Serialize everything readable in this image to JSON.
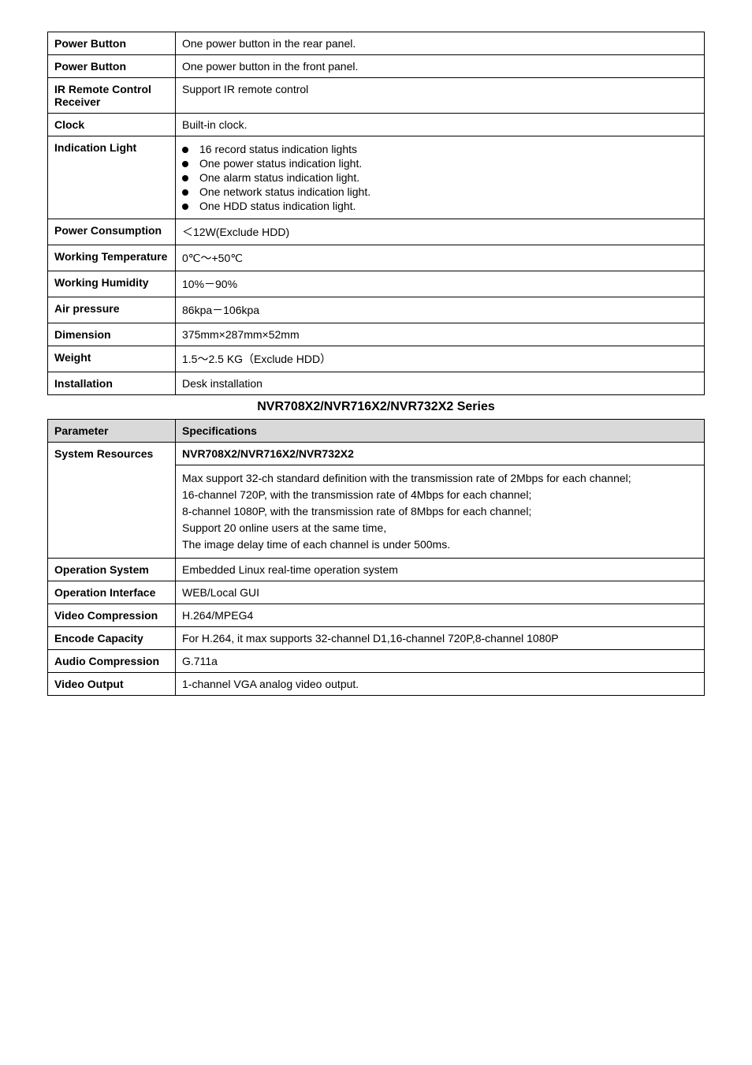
{
  "table1": {
    "rows": [
      {
        "label": "Power Button",
        "value": "One power button in the rear panel."
      },
      {
        "label": "Power Button",
        "value": "One power button in the front panel."
      },
      {
        "label": "IR Remote Control Receiver",
        "value": "Support IR remote control"
      },
      {
        "label": "Clock",
        "value": "Built-in clock."
      }
    ],
    "indication": {
      "label": "Indication Light",
      "items": [
        "16 record status indication lights",
        "One power status indication light.",
        "One alarm status indication light.",
        "One network status indication light.",
        "One HDD status indication light."
      ]
    },
    "rows2": [
      {
        "label": "Power Consumption",
        "value": "＜12W(Exclude HDD)"
      },
      {
        "label": "Working Temperature",
        "value": "0℃～+50℃"
      },
      {
        "label": "Working Humidity",
        "value": "10%－90%"
      },
      {
        "label": "Air pressure",
        "value": "86kpa－106kpa"
      },
      {
        "label": "Dimension",
        "value": "375mm×287mm×52mm"
      },
      {
        "label": "Weight",
        "value": "1.5～2.5 KG（Exclude HDD）"
      },
      {
        "label": "Installation",
        "value": "Desk installation"
      }
    ]
  },
  "section_title": "NVR708X2/NVR716X2/NVR732X2 Series",
  "table2": {
    "header": {
      "label": "Parameter",
      "value": "Specifications"
    },
    "model_row": {
      "value": "NVR708X2/NVR716X2/NVR732X2"
    },
    "system_resources": {
      "label": "System Resources",
      "lines": [
        "Max support 32-ch standard definition with the transmission rate of 2Mbps for each channel;",
        "16-channel 720P, with the transmission rate of 4Mbps for each channel;",
        "8-channel 1080P, with the transmission rate of 8Mbps for each channel;",
        "Support 20 online users at the same time,",
        "The image delay time of each channel is under 500ms."
      ]
    },
    "rows": [
      {
        "label": "Operation System",
        "value": "Embedded Linux real-time operation system"
      },
      {
        "label": "Operation Interface",
        "value": "WEB/Local GUI"
      },
      {
        "label": "Video Compression",
        "value": "H.264/MPEG4"
      },
      {
        "label": "Encode Capacity",
        "value": "For H.264, it max supports 32-channel D1,16-channel 720P,8-channel 1080P"
      },
      {
        "label": "Audio Compression",
        "value": "G.711a"
      },
      {
        "label": "Video Output",
        "value": "1-channel VGA analog video output."
      }
    ]
  }
}
